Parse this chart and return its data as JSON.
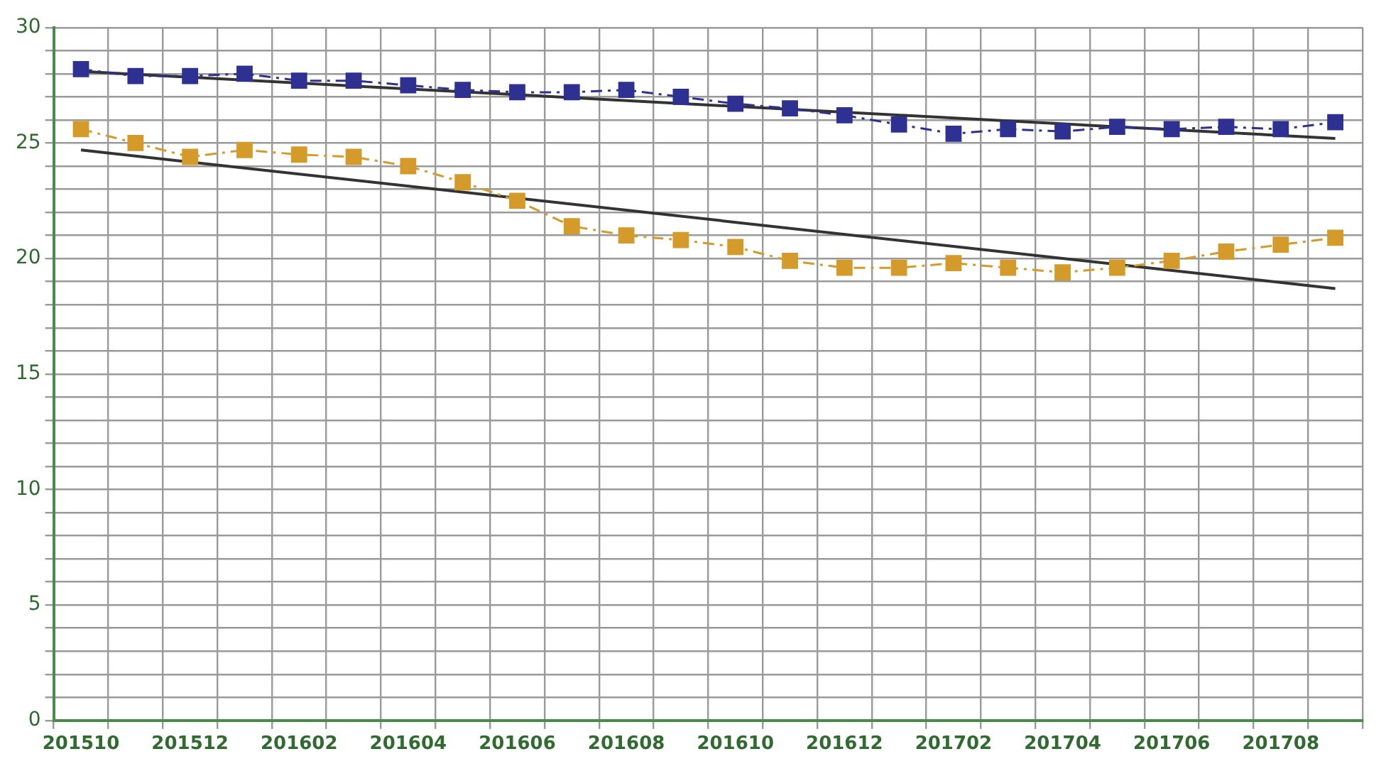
{
  "chart_data": {
    "type": "line",
    "categories": [
      "201510",
      null,
      "201512",
      null,
      "201602",
      null,
      "201604",
      null,
      "201606",
      null,
      "201608",
      null,
      "201610",
      null,
      "201612",
      null,
      "201702",
      null,
      "201704",
      null,
      "201706",
      null,
      "201708",
      null
    ],
    "series": [
      {
        "color": "#2e3192",
        "marker": "square",
        "line_style": "dashed",
        "values": [
          28.2,
          27.9,
          27.9,
          28.0,
          27.7,
          27.7,
          27.5,
          27.3,
          27.2,
          27.2,
          27.3,
          27.0,
          26.7,
          26.5,
          26.2,
          25.8,
          25.4,
          25.6,
          25.5,
          25.7,
          25.6,
          25.7,
          25.6,
          25.9
        ]
      },
      {
        "color": "#d49a2a",
        "marker": "square",
        "line_style": "dashed",
        "values": [
          25.6,
          25.0,
          24.4,
          24.7,
          24.5,
          24.4,
          24.0,
          23.3,
          22.5,
          21.4,
          21.0,
          20.8,
          20.5,
          19.9,
          19.6,
          19.6,
          19.8,
          19.6,
          19.4,
          19.6,
          19.9,
          20.3,
          20.6,
          20.9
        ]
      },
      {
        "type": "line",
        "color": "#333333",
        "marker": "none",
        "line_style": "solid",
        "values": [
          28.1,
          null,
          null,
          null,
          null,
          null,
          null,
          null,
          null,
          null,
          null,
          null,
          null,
          null,
          null,
          null,
          null,
          null,
          null,
          null,
          null,
          null,
          null,
          25.2
        ]
      },
      {
        "type": "line",
        "color": "#333333",
        "marker": "none",
        "line_style": "solid",
        "values": [
          24.7,
          null,
          null,
          null,
          null,
          null,
          null,
          null,
          null,
          null,
          null,
          null,
          null,
          null,
          null,
          null,
          null,
          null,
          null,
          null,
          null,
          null,
          null,
          18.7
        ]
      }
    ],
    "ylim": [
      0,
      30
    ],
    "yticks": [
      0,
      {
        "value": 1,
        "label": null
      },
      {
        "value": 2,
        "label": null
      },
      {
        "value": 3,
        "label": null
      },
      {
        "value": 4,
        "label": null
      },
      5,
      {
        "value": 6,
        "label": null
      },
      {
        "value": 7,
        "label": null
      },
      {
        "value": 8,
        "label": null
      },
      {
        "value": 9,
        "label": null
      },
      10,
      {
        "value": 11,
        "label": null
      },
      {
        "value": 12,
        "label": null
      },
      {
        "value": 13,
        "label": null
      },
      {
        "value": 14,
        "label": null
      },
      15,
      {
        "value": 16,
        "label": null
      },
      {
        "value": 17,
        "label": null
      },
      {
        "value": 18,
        "label": null
      },
      {
        "value": 19,
        "label": null
      },
      20,
      {
        "value": 21,
        "label": null
      },
      {
        "value": 22,
        "label": null
      },
      {
        "value": 23,
        "label": null
      },
      {
        "value": 24,
        "label": null
      },
      25,
      {
        "value": 26,
        "label": null
      },
      {
        "value": 27,
        "label": null
      },
      {
        "value": 28,
        "label": null
      },
      {
        "value": 29,
        "label": null
      },
      30
    ],
    "grid": true,
    "legend": false
  }
}
